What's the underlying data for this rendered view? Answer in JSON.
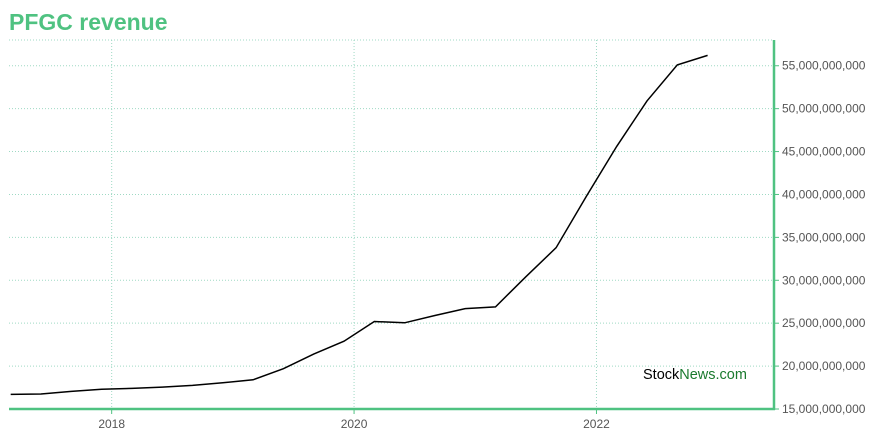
{
  "title": "PFGC revenue",
  "watermark": {
    "part1": "Stock",
    "part2": "News",
    "part3": ".com"
  },
  "colors": {
    "accent": "#4fc281",
    "line": "#000000",
    "grid": "#9fd9c4",
    "watermark_dark": "#000000",
    "watermark_green": "#1a7a2e"
  },
  "chart_data": {
    "type": "line",
    "title": "PFGC revenue",
    "xlabel": "",
    "ylabel": "",
    "x_ticks": [
      "2018",
      "2020",
      "2022"
    ],
    "y_ticks": [
      "15,000,000,000",
      "20,000,000,000",
      "25,000,000,000",
      "30,000,000,000",
      "35,000,000,000",
      "40,000,000,000",
      "45,000,000,000",
      "50,000,000,000",
      "55,000,000,000"
    ],
    "xlim": [
      "2017-03",
      "2023-03"
    ],
    "ylim": [
      15000000000,
      58000000000
    ],
    "grid": true,
    "y_axis_position": "right",
    "series": [
      {
        "x": [
          "2017-03",
          "2017-06",
          "2017-09",
          "2017-12",
          "2018-03",
          "2018-06",
          "2018-09",
          "2018-12",
          "2019-03",
          "2019-06",
          "2019-09",
          "2019-12",
          "2020-03",
          "2020-06",
          "2020-09",
          "2020-12",
          "2021-03",
          "2021-06",
          "2021-09",
          "2021-12",
          "2022-03",
          "2022-06",
          "2022-09",
          "2022-12"
        ],
        "values": [
          16700000000,
          16750000000,
          17050000000,
          17300000000,
          17400000000,
          17550000000,
          17750000000,
          18050000000,
          18400000000,
          19700000000,
          21400000000,
          22900000000,
          25200000000,
          25050000000,
          25900000000,
          26700000000,
          26900000000,
          30400000000,
          33800000000,
          39800000000,
          45600000000,
          50900000000,
          55100000000,
          56200000000
        ]
      }
    ]
  }
}
